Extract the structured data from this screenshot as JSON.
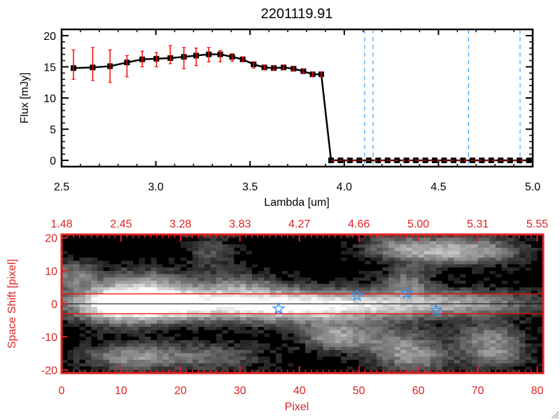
{
  "chart_data": [
    {
      "type": "line",
      "title": "2201119.91",
      "xlabel": "Lambda [um]",
      "ylabel": "Flux [mJy]",
      "xlim": [
        2.5,
        5.0
      ],
      "ylim": [
        -1,
        21
      ],
      "xticks": [
        "2.5",
        "3.0",
        "3.5",
        "4.0",
        "4.5",
        "5.0"
      ],
      "yticks": [
        "0",
        "5",
        "10",
        "15",
        "20"
      ],
      "grid": false,
      "series": [
        {
          "x": [
            2.563,
            2.665,
            2.757,
            2.847,
            2.928,
            3.003,
            3.077,
            3.149,
            3.214,
            3.281,
            3.342,
            3.405,
            3.461,
            3.519,
            3.576,
            3.626,
            3.678,
            3.731,
            3.783,
            3.832,
            3.878,
            3.93,
            3.98,
            4.03,
            4.08,
            4.13,
            4.18,
            4.23,
            4.28,
            4.33,
            4.38,
            4.43,
            4.48,
            4.53,
            4.58,
            4.63,
            4.68,
            4.73,
            4.78,
            4.83,
            4.88,
            4.93,
            4.98
          ],
          "y": [
            14.8,
            14.9,
            15.1,
            15.7,
            16.2,
            16.3,
            16.4,
            16.6,
            16.8,
            17.0,
            17.0,
            16.6,
            16.2,
            15.4,
            14.9,
            14.8,
            14.9,
            14.7,
            14.3,
            13.8,
            13.8,
            0,
            0,
            0,
            0,
            0,
            0,
            0,
            0,
            0,
            0,
            0,
            0,
            0,
            0,
            0,
            0,
            0,
            0,
            0,
            0,
            0,
            0
          ],
          "err_low": [
            13.0,
            12.8,
            12.5,
            13.4,
            15.0,
            15.0,
            15.5,
            14.7,
            15.2,
            15.8,
            15.8,
            15.9,
            15.8,
            14.8,
            14.6,
            14.5,
            14.6,
            14.4,
            14.0,
            13.4,
            13.4,
            0,
            0,
            0,
            0,
            0,
            0,
            0,
            0,
            0,
            0,
            0,
            0,
            0,
            0,
            0,
            0,
            0,
            0,
            0,
            0,
            0,
            0
          ],
          "err_high": [
            17.7,
            18.1,
            17.7,
            16.8,
            17.5,
            17.3,
            18.4,
            18.1,
            18.0,
            18.1,
            17.6,
            17.1,
            16.6,
            15.8,
            15.3,
            15.2,
            15.3,
            15.0,
            14.6,
            14.2,
            14.2,
            0,
            0,
            0,
            0,
            0,
            0,
            0,
            0,
            0,
            0,
            0,
            0,
            0,
            0,
            0,
            0,
            0,
            0,
            0,
            0,
            0,
            0
          ]
        }
      ],
      "vlines": [
        4.108,
        4.153,
        4.66,
        4.933
      ],
      "hline": 0,
      "colors": {
        "line": "#000000",
        "errorbar": "#ff0000",
        "vline": "#1e90ff",
        "hline": "#ff0000"
      }
    },
    {
      "type": "heatmap",
      "xlabel": "Pixel",
      "ylabel": "Space Shift [pixel]",
      "xlim": [
        0,
        81
      ],
      "ylim": [
        -21,
        21
      ],
      "xticks": [
        "0",
        "10",
        "20",
        "30",
        "40",
        "50",
        "60",
        "70",
        "80"
      ],
      "yticks": [
        "20",
        "10",
        "0",
        "-10",
        "-20"
      ],
      "top_xticks": [
        "1.48",
        "2.45",
        "3.28",
        "3.83",
        "4.27",
        "4.66",
        "5.00",
        "5.31",
        "5.55"
      ],
      "aperture_lines": [
        3,
        -3
      ],
      "center_line": 0,
      "stars": [
        {
          "x": 36.5,
          "y": -1.5
        },
        {
          "x": 49.7,
          "y": 2.5
        },
        {
          "x": 58.0,
          "y": 3.2
        },
        {
          "x": 63.0,
          "y": -2.0
        }
      ],
      "colormap": "grayscale",
      "colors": {
        "axes": "#dd2222",
        "aperture": "#ff0000",
        "star": "#1e90ff"
      }
    }
  ]
}
